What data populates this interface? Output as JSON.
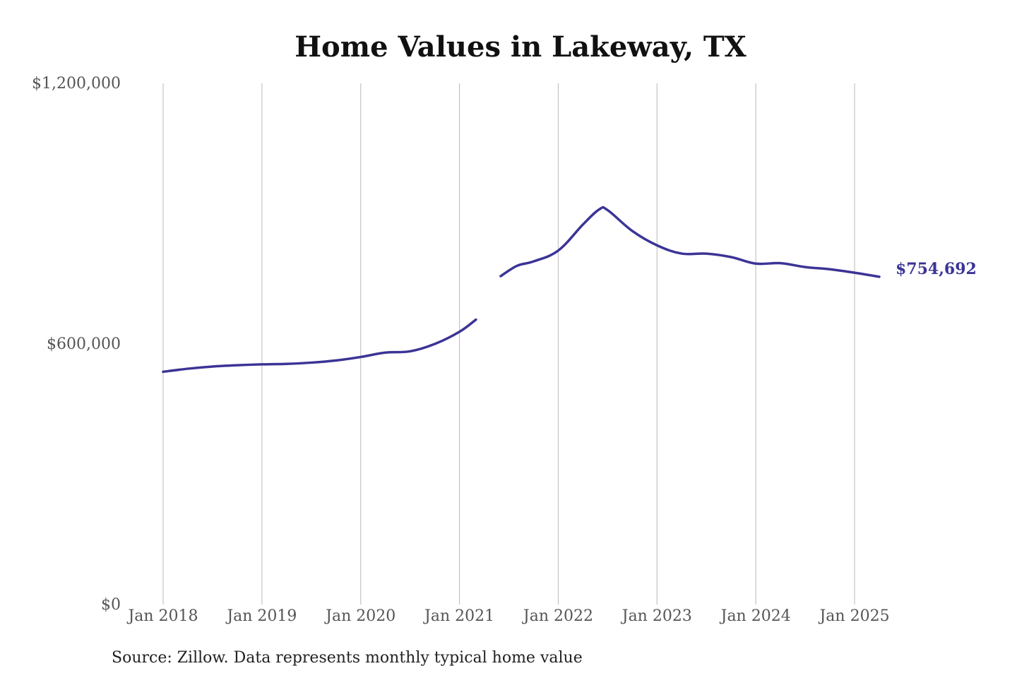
{
  "colors": {
    "series": "#3b3496",
    "grid": "#c4c4c4",
    "tick_text": "#555555",
    "title_text": "#111111"
  },
  "source_note": "Source: Zillow. Data represents monthly typical home value",
  "chart_data": {
    "type": "line",
    "title": "Home Values in Lakeway, TX",
    "xlabel": "",
    "ylabel": "",
    "ylim": [
      0,
      1200000
    ],
    "yticks": [
      0,
      600000,
      1200000
    ],
    "ytick_labels": [
      "$0",
      "$600,000",
      "$1,200,000"
    ],
    "xlim": [
      "2018-01",
      "2025-04"
    ],
    "xticks": [
      "2018-01",
      "2019-01",
      "2020-01",
      "2021-01",
      "2022-01",
      "2023-01",
      "2024-01",
      "2025-01"
    ],
    "xtick_labels": [
      "Jan 2018",
      "Jan 2019",
      "Jan 2020",
      "Jan 2021",
      "Jan 2022",
      "Jan 2023",
      "Jan 2024",
      "Jan 2025"
    ],
    "grid": "vertical at x ticks",
    "end_label": "$754,692",
    "series": [
      {
        "segments": [
          [
            {
              "x": "2018-01",
              "y": 536000
            },
            {
              "x": "2018-04",
              "y": 543000
            },
            {
              "x": "2018-07",
              "y": 548000
            },
            {
              "x": "2018-10",
              "y": 551000
            },
            {
              "x": "2019-01",
              "y": 553000
            },
            {
              "x": "2019-04",
              "y": 554000
            },
            {
              "x": "2019-07",
              "y": 557000
            },
            {
              "x": "2019-10",
              "y": 562000
            },
            {
              "x": "2020-01",
              "y": 570000
            },
            {
              "x": "2020-04",
              "y": 580000
            },
            {
              "x": "2020-07",
              "y": 583000
            },
            {
              "x": "2020-10",
              "y": 600000
            },
            {
              "x": "2021-01",
              "y": 628000
            },
            {
              "x": "2021-03",
              "y": 656000
            }
          ],
          [
            {
              "x": "2021-06",
              "y": 756000
            },
            {
              "x": "2021-08",
              "y": 780000
            },
            {
              "x": "2021-10",
              "y": 790000
            },
            {
              "x": "2022-01",
              "y": 815000
            },
            {
              "x": "2022-04",
              "y": 875000
            },
            {
              "x": "2022-06",
              "y": 910000
            },
            {
              "x": "2022-07",
              "y": 908000
            },
            {
              "x": "2022-10",
              "y": 860000
            },
            {
              "x": "2023-01",
              "y": 827000
            },
            {
              "x": "2023-04",
              "y": 808000
            },
            {
              "x": "2023-07",
              "y": 808000
            },
            {
              "x": "2023-10",
              "y": 800000
            },
            {
              "x": "2024-01",
              "y": 785000
            },
            {
              "x": "2024-04",
              "y": 786000
            },
            {
              "x": "2024-07",
              "y": 777000
            },
            {
              "x": "2024-10",
              "y": 772000
            },
            {
              "x": "2025-01",
              "y": 764000
            },
            {
              "x": "2025-04",
              "y": 754692
            }
          ]
        ]
      }
    ]
  }
}
